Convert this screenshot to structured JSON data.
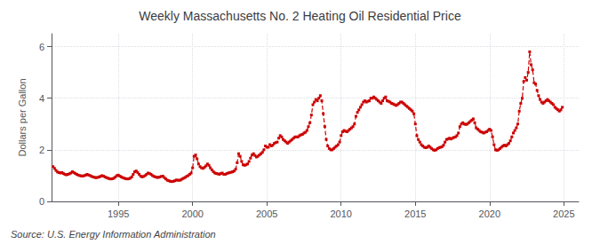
{
  "chart_data": {
    "type": "line",
    "title": "Weekly Massachusetts No. 2 Heating Oil Residential Price",
    "ylabel": "Dollars per Gallon",
    "annotations": [
      "Source: U.S. Energy Information Administration"
    ],
    "color": "#CC0000",
    "marker": "square",
    "line_style": "dashed",
    "grid": true,
    "xlim": [
      1990.5,
      2026.0
    ],
    "xticks": [
      1995,
      2000,
      2005,
      2010,
      2015,
      2020,
      2025
    ],
    "ylim": [
      0,
      6.5
    ],
    "yticks": [
      0,
      2,
      4,
      6
    ],
    "x": [
      1990.6,
      1990.7,
      1990.8,
      1990.9,
      1991.0,
      1991.1,
      1991.2,
      1991.3,
      1991.4,
      1991.5,
      1991.6,
      1991.7,
      1991.8,
      1991.9,
      1992.0,
      1992.1,
      1992.2,
      1992.3,
      1992.4,
      1992.5,
      1992.6,
      1992.7,
      1992.8,
      1992.9,
      1993.0,
      1993.1,
      1993.2,
      1993.3,
      1993.4,
      1993.5,
      1993.6,
      1993.7,
      1993.8,
      1993.9,
      1994.0,
      1994.1,
      1994.2,
      1994.3,
      1994.4,
      1994.5,
      1994.6,
      1994.7,
      1994.8,
      1994.9,
      1995.0,
      1995.1,
      1995.2,
      1995.3,
      1995.4,
      1995.5,
      1995.6,
      1995.7,
      1995.8,
      1995.9,
      1996.0,
      1996.1,
      1996.2,
      1996.3,
      1996.4,
      1996.5,
      1996.6,
      1996.7,
      1996.8,
      1996.9,
      1997.0,
      1997.1,
      1997.2,
      1997.3,
      1997.4,
      1997.5,
      1997.6,
      1997.7,
      1997.8,
      1997.9,
      1998.0,
      1998.1,
      1998.2,
      1998.3,
      1998.4,
      1998.5,
      1998.6,
      1998.7,
      1998.8,
      1998.9,
      1999.0,
      1999.1,
      1999.2,
      1999.3,
      1999.4,
      1999.5,
      1999.6,
      1999.7,
      1999.8,
      1999.9,
      2000.0,
      2000.1,
      2000.2,
      2000.3,
      2000.4,
      2000.5,
      2000.6,
      2000.7,
      2000.8,
      2000.9,
      2001.0,
      2001.1,
      2001.2,
      2001.3,
      2001.4,
      2001.5,
      2001.6,
      2001.7,
      2001.8,
      2001.9,
      2002.0,
      2002.1,
      2002.2,
      2002.3,
      2002.4,
      2002.5,
      2002.6,
      2002.7,
      2002.8,
      2002.9,
      2003.0,
      2003.1,
      2003.2,
      2003.3,
      2003.4,
      2003.5,
      2003.6,
      2003.7,
      2003.8,
      2003.9,
      2004.0,
      2004.1,
      2004.2,
      2004.3,
      2004.4,
      2004.5,
      2004.6,
      2004.7,
      2004.8,
      2004.9,
      2005.0,
      2005.1,
      2005.2,
      2005.3,
      2005.4,
      2005.5,
      2005.6,
      2005.7,
      2005.8,
      2005.9,
      2006.0,
      2006.1,
      2006.2,
      2006.3,
      2006.4,
      2006.5,
      2006.6,
      2006.7,
      2006.8,
      2006.9,
      2007.0,
      2007.1,
      2007.2,
      2007.3,
      2007.4,
      2007.5,
      2007.6,
      2007.7,
      2007.8,
      2007.9,
      2008.0,
      2008.1,
      2008.2,
      2008.3,
      2008.4,
      2008.5,
      2008.6,
      2008.7,
      2008.8,
      2008.9,
      2009.0,
      2009.1,
      2009.2,
      2009.3,
      2009.4,
      2009.5,
      2009.6,
      2009.7,
      2009.8,
      2009.9,
      2010.0,
      2010.1,
      2010.2,
      2010.3,
      2010.4,
      2010.5,
      2010.6,
      2010.7,
      2010.8,
      2010.9,
      2011.0,
      2011.1,
      2011.2,
      2011.3,
      2011.4,
      2011.5,
      2011.6,
      2011.7,
      2011.8,
      2011.9,
      2012.0,
      2012.1,
      2012.2,
      2012.3,
      2012.4,
      2012.5,
      2012.6,
      2012.7,
      2012.8,
      2012.9,
      2013.0,
      2013.1,
      2013.2,
      2013.3,
      2013.4,
      2013.5,
      2013.6,
      2013.7,
      2013.8,
      2013.9,
      2014.0,
      2014.1,
      2014.2,
      2014.3,
      2014.4,
      2014.5,
      2014.6,
      2014.7,
      2014.8,
      2014.9,
      2015.0,
      2015.1,
      2015.2,
      2015.3,
      2015.4,
      2015.5,
      2015.6,
      2015.7,
      2015.8,
      2015.9,
      2016.0,
      2016.1,
      2016.2,
      2016.3,
      2016.4,
      2016.5,
      2016.6,
      2016.7,
      2016.8,
      2016.9,
      2017.0,
      2017.1,
      2017.2,
      2017.3,
      2017.4,
      2017.5,
      2017.6,
      2017.7,
      2017.8,
      2017.9,
      2018.0,
      2018.1,
      2018.2,
      2018.3,
      2018.4,
      2018.5,
      2018.6,
      2018.7,
      2018.8,
      2018.9,
      2019.0,
      2019.1,
      2019.2,
      2019.3,
      2019.4,
      2019.5,
      2019.6,
      2019.7,
      2019.8,
      2019.9,
      2020.0,
      2020.1,
      2020.2,
      2020.3,
      2020.4,
      2020.5,
      2020.6,
      2020.7,
      2020.8,
      2020.9,
      2021.0,
      2021.1,
      2021.2,
      2021.3,
      2021.4,
      2021.5,
      2021.6,
      2021.7,
      2021.8,
      2021.9,
      2022.0,
      2022.1,
      2022.2,
      2022.3,
      2022.4,
      2022.5,
      2022.6,
      2022.7,
      2022.8,
      2022.9,
      2023.0,
      2023.1,
      2023.2,
      2023.3,
      2023.4,
      2023.5,
      2023.6,
      2023.7,
      2023.8,
      2023.9,
      2024.0,
      2024.1,
      2024.2,
      2024.3,
      2024.4,
      2024.5,
      2024.6,
      2024.7,
      2024.8,
      2024.9
    ],
    "values": [
      1.35,
      1.28,
      1.2,
      1.14,
      1.12,
      1.1,
      1.12,
      1.08,
      1.05,
      1.03,
      1.05,
      1.07,
      1.1,
      1.15,
      1.12,
      1.08,
      1.05,
      1.02,
      1.0,
      0.99,
      0.98,
      1.0,
      1.02,
      1.05,
      1.02,
      1.0,
      0.97,
      0.95,
      0.93,
      0.92,
      0.93,
      0.95,
      0.97,
      1.0,
      0.98,
      0.95,
      0.92,
      0.9,
      0.88,
      0.87,
      0.88,
      0.9,
      0.95,
      1.0,
      1.02,
      0.98,
      0.95,
      0.92,
      0.9,
      0.88,
      0.87,
      0.88,
      0.9,
      0.95,
      1.05,
      1.15,
      1.18,
      1.12,
      1.05,
      0.98,
      0.95,
      0.97,
      1.0,
      1.05,
      1.1,
      1.08,
      1.05,
      1.0,
      0.97,
      0.95,
      0.93,
      0.93,
      0.95,
      0.97,
      0.98,
      0.92,
      0.87,
      0.82,
      0.8,
      0.78,
      0.77,
      0.78,
      0.8,
      0.83,
      0.82,
      0.82,
      0.83,
      0.87,
      0.9,
      0.93,
      0.97,
      1.0,
      1.05,
      1.1,
      1.3,
      1.75,
      1.8,
      1.65,
      1.45,
      1.35,
      1.3,
      1.28,
      1.32,
      1.38,
      1.45,
      1.4,
      1.3,
      1.22,
      1.15,
      1.1,
      1.08,
      1.07,
      1.05,
      1.08,
      1.1,
      1.05,
      1.05,
      1.08,
      1.1,
      1.12,
      1.13,
      1.15,
      1.18,
      1.25,
      1.5,
      1.85,
      1.75,
      1.55,
      1.42,
      1.4,
      1.42,
      1.45,
      1.55,
      1.68,
      1.8,
      1.85,
      1.78,
      1.72,
      1.75,
      1.8,
      1.85,
      1.9,
      2.0,
      2.15,
      2.1,
      2.1,
      2.2,
      2.15,
      2.18,
      2.25,
      2.28,
      2.3,
      2.45,
      2.55,
      2.5,
      2.4,
      2.35,
      2.3,
      2.25,
      2.3,
      2.35,
      2.4,
      2.45,
      2.5,
      2.5,
      2.5,
      2.55,
      2.58,
      2.6,
      2.65,
      2.68,
      2.75,
      2.9,
      3.05,
      3.35,
      3.75,
      3.85,
      3.95,
      3.9,
      4.0,
      4.1,
      3.9,
      3.4,
      2.9,
      2.4,
      2.15,
      2.05,
      2.0,
      2.0,
      2.05,
      2.1,
      2.15,
      2.2,
      2.3,
      2.55,
      2.7,
      2.75,
      2.72,
      2.7,
      2.75,
      2.8,
      2.85,
      2.9,
      3.0,
      3.3,
      3.45,
      3.55,
      3.65,
      3.75,
      3.85,
      3.9,
      3.85,
      3.88,
      3.9,
      4.0,
      4.0,
      4.05,
      4.0,
      3.95,
      3.9,
      3.85,
      3.8,
      3.9,
      4.0,
      4.05,
      3.9,
      3.88,
      3.85,
      3.8,
      3.78,
      3.75,
      3.72,
      3.75,
      3.8,
      3.85,
      3.85,
      3.8,
      3.75,
      3.7,
      3.65,
      3.6,
      3.55,
      3.5,
      3.4,
      3.0,
      2.55,
      2.4,
      2.3,
      2.2,
      2.15,
      2.1,
      2.08,
      2.1,
      2.15,
      2.1,
      2.05,
      2.0,
      1.98,
      2.0,
      2.05,
      2.08,
      2.1,
      2.12,
      2.18,
      2.3,
      2.4,
      2.42,
      2.45,
      2.42,
      2.45,
      2.48,
      2.5,
      2.55,
      2.65,
      2.9,
      3.0,
      3.05,
      3.0,
      2.98,
      3.0,
      3.05,
      3.1,
      3.15,
      3.2,
      3.05,
      2.85,
      2.8,
      2.75,
      2.7,
      2.68,
      2.65,
      2.68,
      2.7,
      2.75,
      2.8,
      2.75,
      2.5,
      2.2,
      2.0,
      1.98,
      2.0,
      2.05,
      2.1,
      2.15,
      2.18,
      2.15,
      2.2,
      2.25,
      2.35,
      2.5,
      2.65,
      2.75,
      2.85,
      3.0,
      3.5,
      3.8,
      4.0,
      4.65,
      4.8,
      4.7,
      5.0,
      5.8,
      5.3,
      5.1,
      4.6,
      4.55,
      4.3,
      4.1,
      3.95,
      3.85,
      3.8,
      3.85,
      3.9,
      3.95,
      3.9,
      3.85,
      3.8,
      3.75,
      3.65,
      3.6,
      3.55,
      3.5,
      3.55,
      3.65
    ]
  }
}
